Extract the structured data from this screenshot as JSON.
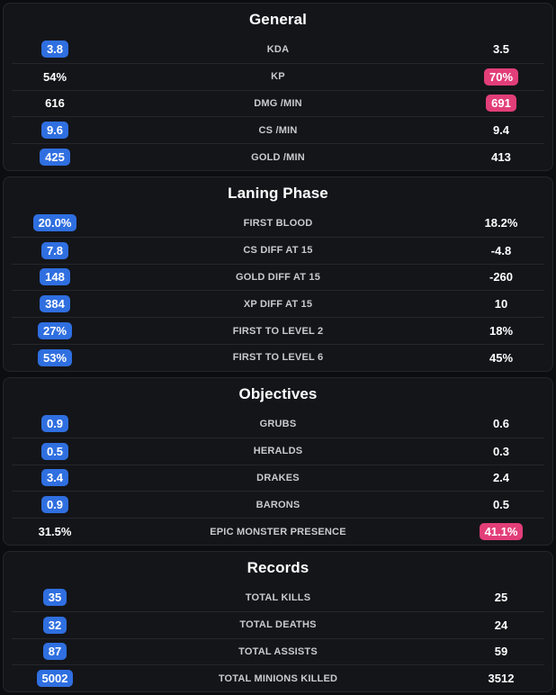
{
  "sections": [
    {
      "title": "General",
      "rows": [
        {
          "label": "KDA",
          "left": "3.8",
          "right": "3.5",
          "highlight": "left"
        },
        {
          "label": "KP",
          "left": "54%",
          "right": "70%",
          "highlight": "right"
        },
        {
          "label": "DMG /MIN",
          "left": "616",
          "right": "691",
          "highlight": "right"
        },
        {
          "label": "CS /MIN",
          "left": "9.6",
          "right": "9.4",
          "highlight": "left"
        },
        {
          "label": "GOLD /MIN",
          "left": "425",
          "right": "413",
          "highlight": "left"
        }
      ]
    },
    {
      "title": "Laning Phase",
      "rows": [
        {
          "label": "FIRST BLOOD",
          "left": "20.0%",
          "right": "18.2%",
          "highlight": "left"
        },
        {
          "label": "CS DIFF AT 15",
          "left": "7.8",
          "right": "-4.8",
          "highlight": "left"
        },
        {
          "label": "GOLD DIFF AT 15",
          "left": "148",
          "right": "-260",
          "highlight": "left"
        },
        {
          "label": "XP DIFF AT 15",
          "left": "384",
          "right": "10",
          "highlight": "left"
        },
        {
          "label": "FIRST TO LEVEL 2",
          "left": "27%",
          "right": "18%",
          "highlight": "left"
        },
        {
          "label": "FIRST TO LEVEL 6",
          "left": "53%",
          "right": "45%",
          "highlight": "left"
        }
      ]
    },
    {
      "title": "Objectives",
      "rows": [
        {
          "label": "GRUBS",
          "left": "0.9",
          "right": "0.6",
          "highlight": "left"
        },
        {
          "label": "HERALDS",
          "left": "0.5",
          "right": "0.3",
          "highlight": "left"
        },
        {
          "label": "DRAKES",
          "left": "3.4",
          "right": "2.4",
          "highlight": "left"
        },
        {
          "label": "BARONS",
          "left": "0.9",
          "right": "0.5",
          "highlight": "left"
        },
        {
          "label": "EPIC MONSTER PRESENCE",
          "left": "31.5%",
          "right": "41.1%",
          "highlight": "right"
        }
      ]
    },
    {
      "title": "Records",
      "rows": [
        {
          "label": "TOTAL KILLS",
          "left": "35",
          "right": "25",
          "highlight": "left"
        },
        {
          "label": "TOTAL DEATHS",
          "left": "32",
          "right": "24",
          "highlight": "left"
        },
        {
          "label": "TOTAL ASSISTS",
          "left": "87",
          "right": "59",
          "highlight": "left"
        },
        {
          "label": "TOTAL MINIONS KILLED",
          "left": "5002",
          "right": "3512",
          "highlight": "left"
        }
      ]
    }
  ],
  "colors": {
    "left_highlight": "#2f6fe0",
    "right_highlight": "#e23e78"
  }
}
